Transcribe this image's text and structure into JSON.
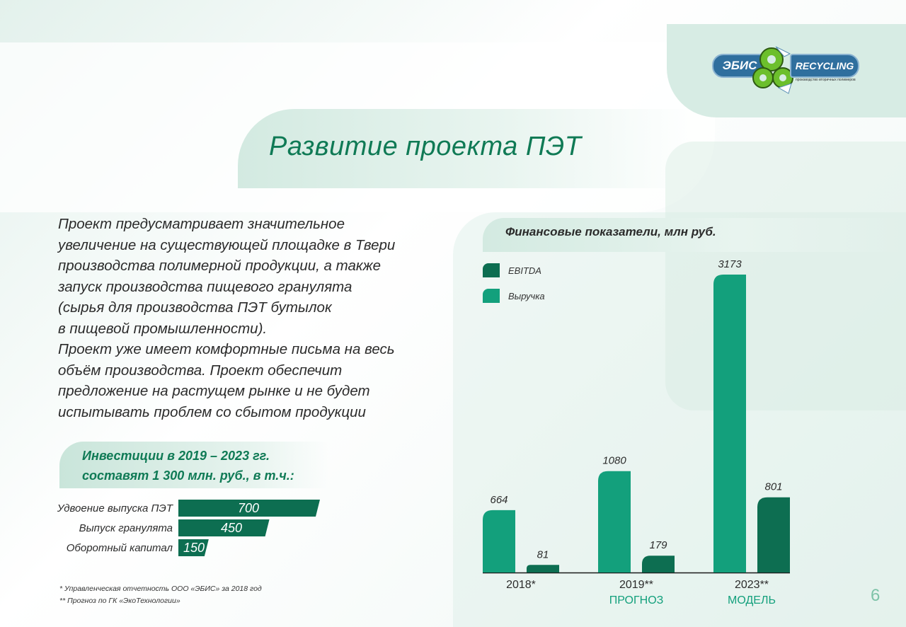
{
  "logo": {
    "left_text": "ЭБИС",
    "right_text": "RECYCLING",
    "subtitle": "производство вторичных полимеров"
  },
  "title": "Развитие проекта ПЭТ",
  "body_lines": [
    "Проект предусматривает значительное",
    "увеличение на существующей площадке в Твери",
    "производства полимерной продукции, а также",
    "запуск производства пищевого гранулята",
    "(сырья для производства ПЭТ бутылок",
    "в пищевой промышленности).",
    "Проект уже имеет комфортные письма на весь",
    "объём производства. Проект обеспечит",
    "предложение на растущем рынке и не будет",
    "испытывать проблем со сбытом продукции"
  ],
  "investments": {
    "title_line1": "Инвестиции в 2019 – 2023 гг.",
    "title_line2": "составят 1 300 млн. руб., в т.ч.:",
    "items": [
      {
        "label": "Удвоение выпуска ПЭТ",
        "value": 700
      },
      {
        "label": "Выпуск гранулята",
        "value": 450
      },
      {
        "label": "Оборотный капитал",
        "value": 150
      }
    ],
    "max": 700
  },
  "notes": [
    "* Управленческая отчетность ООО «ЭБИС» за 2018 год",
    "** Прогноз по ГК «ЭкоТехнологии»"
  ],
  "colors": {
    "revenue": "#13a07c",
    "ebitda": "#0d6e51",
    "title": "#0f7a55",
    "sublabel": "#13a07c"
  },
  "chart_data": {
    "type": "bar",
    "title": "Финансовые показатели, млн руб.",
    "categories": [
      "2018*",
      "2019**",
      "2023**"
    ],
    "category_sublabels": [
      "",
      "ПРОГНОЗ",
      "МОДЕЛЬ"
    ],
    "series": [
      {
        "name": "Выручка",
        "values": [
          664,
          1080,
          3173
        ]
      },
      {
        "name": "EBITDA",
        "values": [
          81,
          179,
          801
        ]
      }
    ],
    "legend_order": [
      "EBITDA",
      "Выручка"
    ],
    "legend_position": "top-left",
    "ylim": [
      0,
      3173
    ],
    "grid": false
  },
  "page_number": "6"
}
